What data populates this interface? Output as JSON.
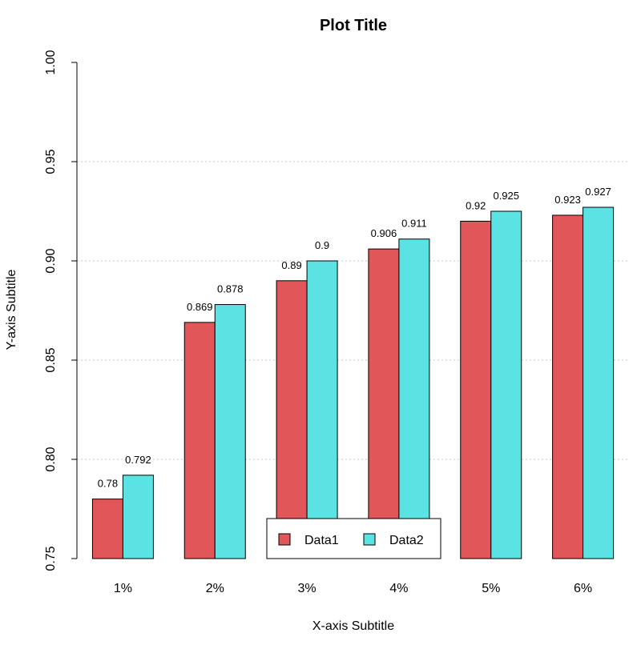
{
  "chart_data": {
    "type": "bar",
    "title": "Plot Title",
    "xlabel": "X-axis Subtitle",
    "ylabel": "Y-axis Subtitle",
    "categories": [
      "1%",
      "2%",
      "3%",
      "4%",
      "5%",
      "6%"
    ],
    "series": [
      {
        "name": "Data1",
        "values": [
          0.78,
          0.869,
          0.89,
          0.906,
          0.92,
          0.923
        ],
        "labels": [
          "0.78",
          "0.869",
          "0.89",
          "0.906",
          "0.92",
          "0.923"
        ],
        "color": "#E15759"
      },
      {
        "name": "Data2",
        "values": [
          0.792,
          0.878,
          0.9,
          0.911,
          0.925,
          0.927
        ],
        "labels": [
          "0.792",
          "0.878",
          "0.9",
          "0.911",
          "0.925",
          "0.927"
        ],
        "color": "#5BE3E3"
      }
    ],
    "ylim": [
      0.75,
      1.0
    ],
    "yticks": [
      0.75,
      0.8,
      0.85,
      0.9,
      0.95,
      1.0
    ],
    "ytick_labels": [
      "0.75",
      "0.80",
      "0.85",
      "0.90",
      "0.95",
      "1.00"
    ],
    "grid": true,
    "grid_style": "dotted horizontal",
    "legend_position": "bottom-center"
  }
}
